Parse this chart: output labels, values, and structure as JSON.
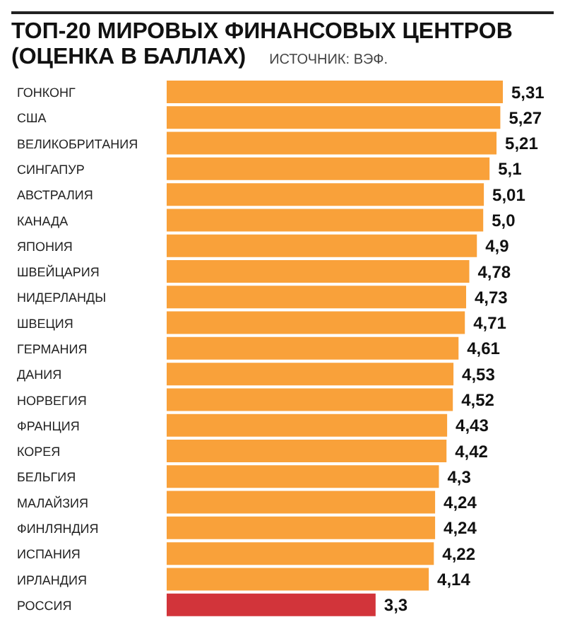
{
  "chart_data": {
    "type": "bar",
    "orientation": "horizontal",
    "title": "ТОП-20 МИРОВЫХ ФИНАНСОВЫХ ЦЕНТРОВ (ОЦЕНКА В БАЛЛАХ)",
    "annotations": [
      "ИСТОЧНИК: ВЭФ."
    ],
    "categories": [
      "ГОНКОНГ",
      "США",
      "ВЕЛИКОБРИТАНИЯ",
      "СИНГАПУР",
      "АВСТРАЛИЯ",
      "КАНАДА",
      "ЯПОНИЯ",
      "ШВЕЙЦАРИЯ",
      "НИДЕРЛАНДЫ",
      "ШВЕЦИЯ",
      "ГЕРМАНИЯ",
      "ДАНИЯ",
      "НОРВЕГИЯ",
      "ФРАНЦИЯ",
      "КОРЕЯ",
      "БЕЛЬГИЯ",
      "МАЛАЙЗИЯ",
      "ФИНЛЯНДИЯ",
      "ИСПАНИЯ",
      "ИРЛАНДИЯ",
      "РОССИЯ"
    ],
    "values": [
      5.31,
      5.27,
      5.21,
      5.1,
      5.01,
      5.0,
      4.9,
      4.78,
      4.73,
      4.71,
      4.61,
      4.53,
      4.52,
      4.43,
      4.42,
      4.3,
      4.24,
      4.24,
      4.22,
      4.14,
      3.3
    ],
    "value_labels": [
      "5,31",
      "5,27",
      "5,21",
      "5,1",
      "5,01",
      "5,0",
      "4,9",
      "4,78",
      "4,73",
      "4,71",
      "4,61",
      "4,53",
      "4,52",
      "4,43",
      "4,42",
      "4,3",
      "4,24",
      "4,24",
      "4,22",
      "4,14",
      "3,3"
    ],
    "colors": [
      "#f9a13a",
      "#f9a13a",
      "#f9a13a",
      "#f9a13a",
      "#f9a13a",
      "#f9a13a",
      "#f9a13a",
      "#f9a13a",
      "#f9a13a",
      "#f9a13a",
      "#f9a13a",
      "#f9a13a",
      "#f9a13a",
      "#f9a13a",
      "#f9a13a",
      "#f9a13a",
      "#f9a13a",
      "#f9a13a",
      "#f9a13a",
      "#f9a13a",
      "#d2343a"
    ]
  }
}
